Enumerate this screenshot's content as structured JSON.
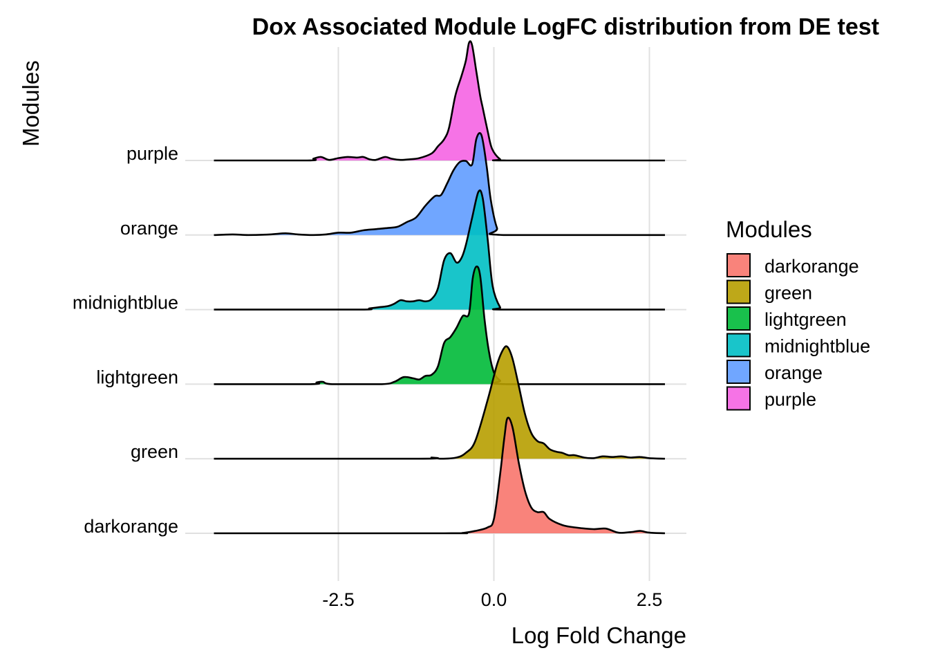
{
  "chart_data": {
    "type": "ridgeline",
    "title": "Dox Associated Module LogFC distribution from DE test",
    "xlabel": "Log Fold Change",
    "ylabel": "Modules",
    "xlim": [
      -4.5,
      3.0
    ],
    "xticks": [
      -2.5,
      0.0,
      2.5
    ],
    "xtick_labels": [
      "-2.5",
      "0.0",
      "2.5"
    ],
    "grid": "vertical major gridlines and horizontal baselines",
    "legend": {
      "title": "Modules",
      "position": "right",
      "entries": [
        "darkorange",
        "green",
        "lightgreen",
        "midnightblue",
        "orange",
        "purple"
      ]
    },
    "colors": {
      "darkorange": "#F8766D",
      "green": "#B79F00",
      "lightgreen": "#00BA38",
      "midnightblue": "#00BFC4",
      "orange": "#619CFF",
      "purple": "#F564E3"
    },
    "categories": [
      "darkorange",
      "green",
      "lightgreen",
      "midnightblue",
      "orange",
      "purple"
    ],
    "series": [
      {
        "name": "darkorange",
        "range": [
          -4.5,
          2.75
        ],
        "density": [
          [
            -4.5,
            0
          ],
          [
            -0.8,
            0
          ],
          [
            -0.5,
            0.003
          ],
          [
            -0.3,
            0.02
          ],
          [
            -0.1,
            0.05
          ],
          [
            0.0,
            0.12
          ],
          [
            0.1,
            0.5
          ],
          [
            0.17,
            0.82
          ],
          [
            0.22,
            0.98
          ],
          [
            0.3,
            0.9
          ],
          [
            0.4,
            0.6
          ],
          [
            0.5,
            0.36
          ],
          [
            0.6,
            0.22
          ],
          [
            0.7,
            0.18
          ],
          [
            0.8,
            0.18
          ],
          [
            0.9,
            0.12
          ],
          [
            1.1,
            0.07
          ],
          [
            1.3,
            0.05
          ],
          [
            1.6,
            0.035
          ],
          [
            1.8,
            0.04
          ],
          [
            2.0,
            0.005
          ],
          [
            2.2,
            0.01
          ],
          [
            2.35,
            0.02
          ],
          [
            2.5,
            0.005
          ],
          [
            2.75,
            0
          ]
        ]
      },
      {
        "name": "green",
        "range": [
          -4.5,
          2.75
        ],
        "density": [
          [
            -4.5,
            0
          ],
          [
            -1.2,
            0
          ],
          [
            -1.0,
            0.01
          ],
          [
            -0.85,
            0
          ],
          [
            -0.6,
            0.01
          ],
          [
            -0.45,
            0.05
          ],
          [
            -0.3,
            0.15
          ],
          [
            -0.1,
            0.5
          ],
          [
            0.05,
            0.8
          ],
          [
            0.15,
            0.93
          ],
          [
            0.22,
            0.95
          ],
          [
            0.3,
            0.85
          ],
          [
            0.4,
            0.62
          ],
          [
            0.5,
            0.38
          ],
          [
            0.6,
            0.22
          ],
          [
            0.7,
            0.15
          ],
          [
            0.8,
            0.13
          ],
          [
            0.9,
            0.08
          ],
          [
            1.0,
            0.06
          ],
          [
            1.1,
            0.05
          ],
          [
            1.2,
            0.03
          ],
          [
            1.3,
            0.03
          ],
          [
            1.45,
            0.01
          ],
          [
            1.6,
            0.005
          ],
          [
            1.75,
            0.02
          ],
          [
            1.9,
            0.015
          ],
          [
            2.05,
            0.02
          ],
          [
            2.2,
            0.01
          ],
          [
            2.35,
            0.015
          ],
          [
            2.5,
            0.005
          ],
          [
            2.75,
            0
          ]
        ]
      },
      {
        "name": "lightgreen",
        "range": [
          -4.5,
          2.75
        ],
        "density": [
          [
            -4.5,
            0
          ],
          [
            -2.95,
            0
          ],
          [
            -2.85,
            0.015
          ],
          [
            -2.75,
            0.02
          ],
          [
            -2.6,
            0
          ],
          [
            -1.8,
            0
          ],
          [
            -1.6,
            0.02
          ],
          [
            -1.45,
            0.06
          ],
          [
            -1.3,
            0.05
          ],
          [
            -1.2,
            0.04
          ],
          [
            -1.1,
            0.07
          ],
          [
            -1.0,
            0.08
          ],
          [
            -0.9,
            0.15
          ],
          [
            -0.8,
            0.35
          ],
          [
            -0.7,
            0.4
          ],
          [
            -0.6,
            0.48
          ],
          [
            -0.5,
            0.58
          ],
          [
            -0.4,
            0.6
          ],
          [
            -0.34,
            0.9
          ],
          [
            -0.28,
            1.0
          ],
          [
            -0.22,
            0.92
          ],
          [
            -0.15,
            0.55
          ],
          [
            -0.08,
            0.28
          ],
          [
            0.0,
            0.1
          ],
          [
            0.1,
            0.03
          ],
          [
            0.2,
            0
          ],
          [
            2.75,
            0
          ]
        ]
      },
      {
        "name": "midnightblue",
        "range": [
          -4.5,
          2.75
        ],
        "density": [
          [
            -4.5,
            0
          ],
          [
            -2.2,
            0
          ],
          [
            -2.0,
            0.01
          ],
          [
            -1.85,
            0.02
          ],
          [
            -1.7,
            0.03
          ],
          [
            -1.6,
            0.05
          ],
          [
            -1.5,
            0.08
          ],
          [
            -1.4,
            0.07
          ],
          [
            -1.3,
            0.07
          ],
          [
            -1.2,
            0.08
          ],
          [
            -1.1,
            0.07
          ],
          [
            -1.0,
            0.09
          ],
          [
            -0.9,
            0.18
          ],
          [
            -0.8,
            0.42
          ],
          [
            -0.7,
            0.48
          ],
          [
            -0.6,
            0.4
          ],
          [
            -0.52,
            0.44
          ],
          [
            -0.45,
            0.55
          ],
          [
            -0.35,
            0.78
          ],
          [
            -0.25,
            1.0
          ],
          [
            -0.18,
            0.95
          ],
          [
            -0.1,
            0.6
          ],
          [
            -0.02,
            0.2
          ],
          [
            0.1,
            0.02
          ],
          [
            0.2,
            0
          ],
          [
            2.75,
            0
          ]
        ]
      },
      {
        "name": "orange",
        "range": [
          -4.5,
          2.75
        ],
        "density": [
          [
            -4.5,
            0
          ],
          [
            -4.2,
            0.005
          ],
          [
            -3.95,
            0
          ],
          [
            -3.6,
            0.005
          ],
          [
            -3.35,
            0.015
          ],
          [
            -3.15,
            0.005
          ],
          [
            -2.9,
            0
          ],
          [
            -2.7,
            0.005
          ],
          [
            -2.5,
            0.02
          ],
          [
            -2.3,
            0.02
          ],
          [
            -2.1,
            0.04
          ],
          [
            -1.9,
            0.05
          ],
          [
            -1.7,
            0.06
          ],
          [
            -1.55,
            0.07
          ],
          [
            -1.4,
            0.11
          ],
          [
            -1.25,
            0.15
          ],
          [
            -1.1,
            0.25
          ],
          [
            -0.95,
            0.33
          ],
          [
            -0.85,
            0.34
          ],
          [
            -0.75,
            0.44
          ],
          [
            -0.65,
            0.55
          ],
          [
            -0.55,
            0.62
          ],
          [
            -0.45,
            0.63
          ],
          [
            -0.35,
            0.6
          ],
          [
            -0.28,
            0.82
          ],
          [
            -0.2,
            0.85
          ],
          [
            -0.12,
            0.6
          ],
          [
            -0.05,
            0.3
          ],
          [
            0.05,
            0.06
          ],
          [
            0.15,
            0
          ],
          [
            2.75,
            0
          ]
        ]
      },
      {
        "name": "purple",
        "range": [
          -4.5,
          2.75
        ],
        "density": [
          [
            -4.5,
            0
          ],
          [
            -3.0,
            0
          ],
          [
            -2.9,
            0.015
          ],
          [
            -2.78,
            0.03
          ],
          [
            -2.65,
            0.005
          ],
          [
            -2.5,
            0.02
          ],
          [
            -2.35,
            0.03
          ],
          [
            -2.2,
            0.025
          ],
          [
            -2.1,
            0.03
          ],
          [
            -2.0,
            0.01
          ],
          [
            -1.9,
            0.005
          ],
          [
            -1.75,
            0.03
          ],
          [
            -1.65,
            0.015
          ],
          [
            -1.5,
            0.005
          ],
          [
            -1.35,
            0.01
          ],
          [
            -1.2,
            0.02
          ],
          [
            -1.0,
            0.06
          ],
          [
            -0.9,
            0.12
          ],
          [
            -0.8,
            0.18
          ],
          [
            -0.72,
            0.28
          ],
          [
            -0.62,
            0.55
          ],
          [
            -0.52,
            0.72
          ],
          [
            -0.45,
            0.85
          ],
          [
            -0.4,
            1.0
          ],
          [
            -0.35,
            0.98
          ],
          [
            -0.28,
            0.75
          ],
          [
            -0.22,
            0.55
          ],
          [
            -0.18,
            0.45
          ],
          [
            -0.1,
            0.25
          ],
          [
            -0.03,
            0.1
          ],
          [
            0.1,
            0.01
          ],
          [
            0.2,
            0
          ],
          [
            2.75,
            0
          ]
        ]
      }
    ]
  }
}
